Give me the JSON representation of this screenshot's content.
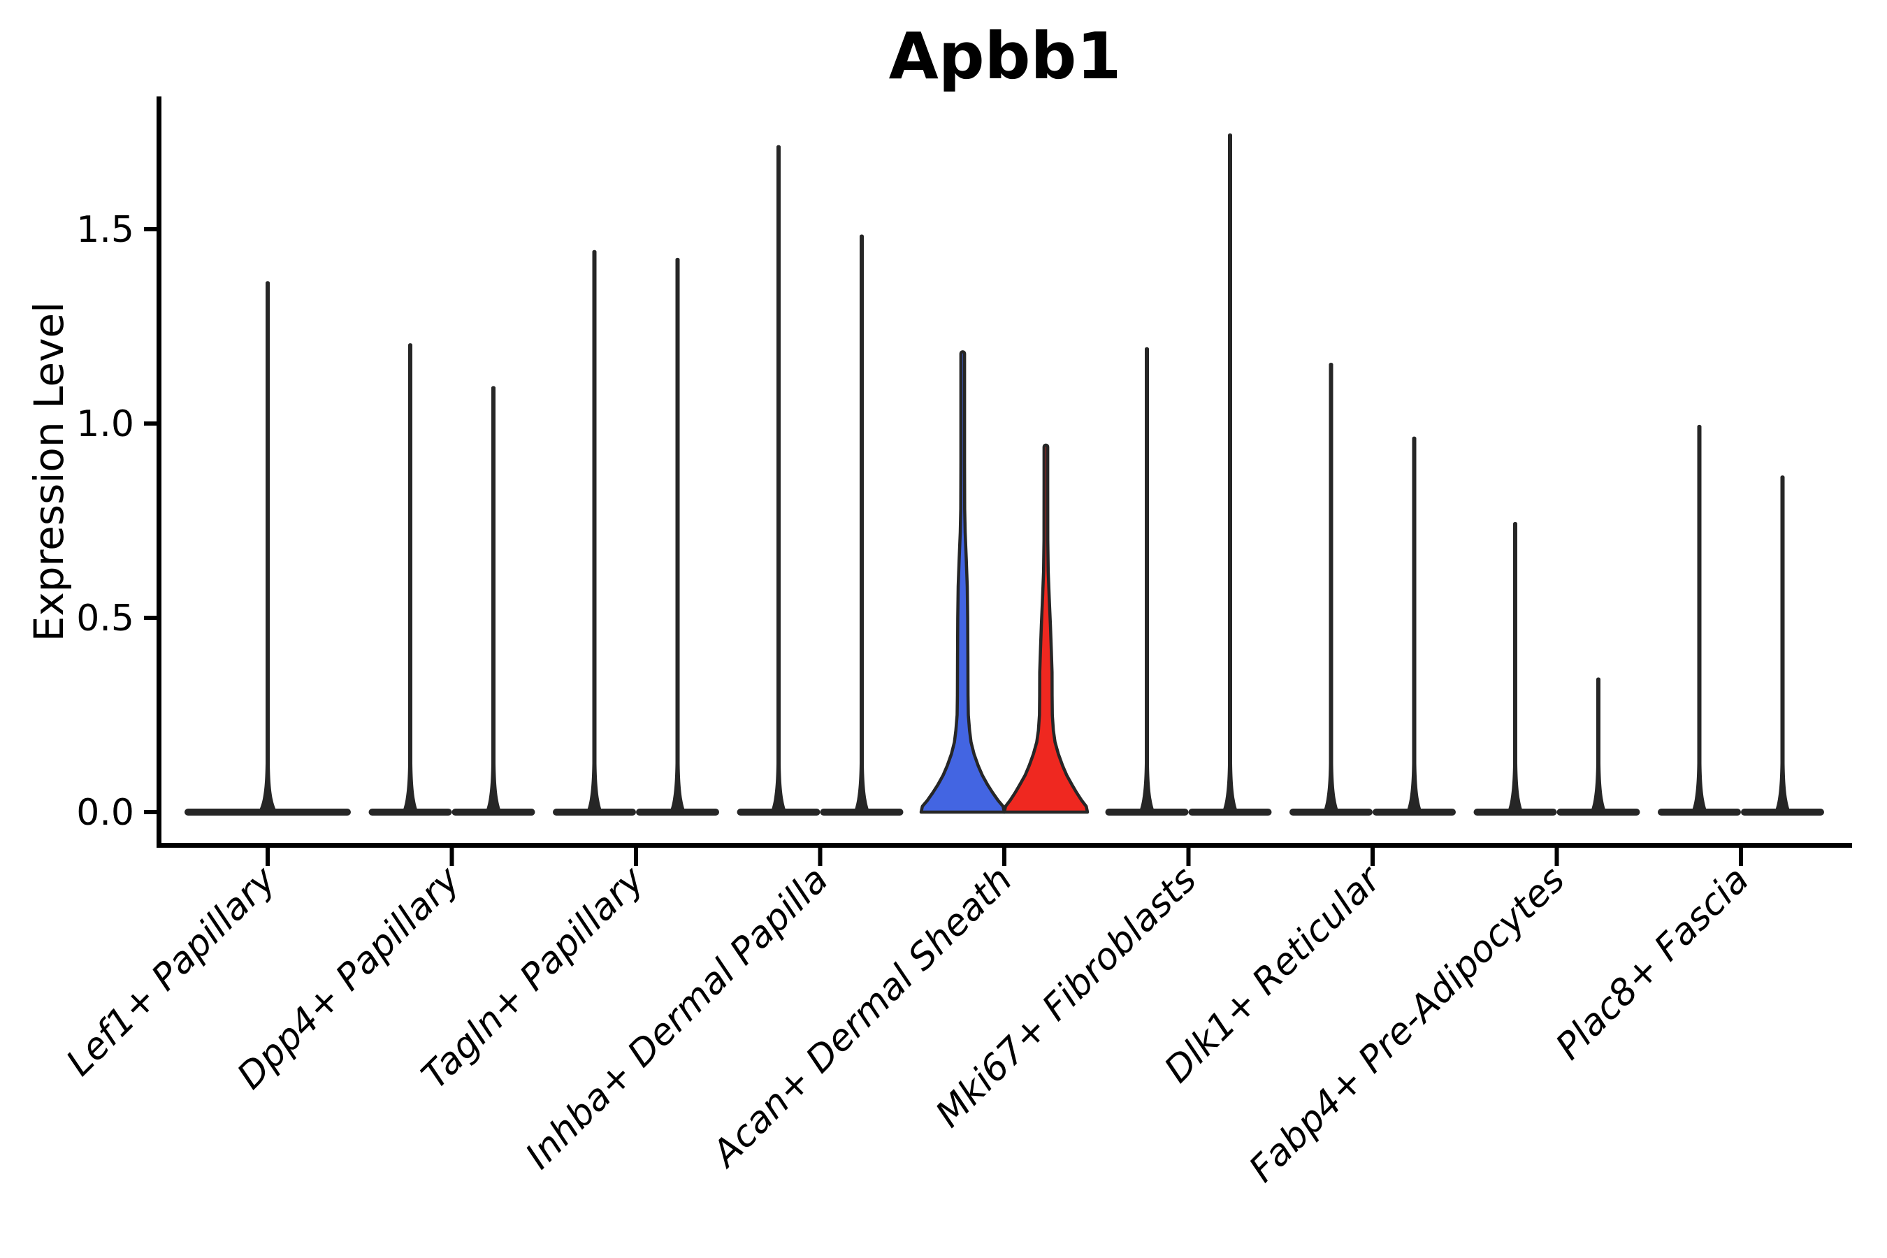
{
  "title": {
    "text": "Apbb1"
  },
  "y_axis": {
    "label": "Expression Level",
    "tick_labels": [
      "0.0",
      "0.5",
      "1.0",
      "1.5"
    ]
  },
  "chart_data": {
    "type": "violin",
    "title": "Apbb1",
    "xlabel": "",
    "ylabel": "Expression Level",
    "ylim": [
      -0.09,
      1.84
    ],
    "yticks": [
      0.0,
      0.5,
      1.0,
      1.5
    ],
    "ytick_labels": [
      "0.0",
      "0.5",
      "1.0",
      "1.5"
    ],
    "grid": false,
    "legend_position": "none",
    "x_label_rotation_deg": 45,
    "style": {
      "violin_stroke": "#262626",
      "axis_color": "#000000",
      "highlight_blue": "#4365E2",
      "highlight_red": "#EF2820",
      "background": "#ffffff"
    },
    "categories": [
      "Lef1+ Papillary",
      "Dpp4+ Papillary",
      "Tagln+ Papillary",
      "Inhba+ Dermal Papilla",
      "Acan+ Dermal Sheath",
      "Mki67+ Fibroblasts",
      "Dlk1+ Reticular",
      "Fabp4+ Pre-Adipocytes",
      "Plac8+ Fascia"
    ],
    "violins": [
      {
        "category": "Lef1+ Papillary",
        "groups": [
          {
            "side": "center",
            "max": 1.37,
            "fill": "none"
          }
        ]
      },
      {
        "category": "Dpp4+ Papillary",
        "groups": [
          {
            "side": "left",
            "max": 1.21,
            "fill": "none"
          },
          {
            "side": "right",
            "max": 1.1,
            "fill": "none"
          }
        ]
      },
      {
        "category": "Tagln+ Papillary",
        "groups": [
          {
            "side": "left",
            "max": 1.45,
            "fill": "none"
          },
          {
            "side": "right",
            "max": 1.43,
            "fill": "none"
          }
        ]
      },
      {
        "category": "Inhba+ Dermal Papilla",
        "groups": [
          {
            "side": "left",
            "max": 1.72,
            "fill": "none"
          },
          {
            "side": "right",
            "max": 1.49,
            "fill": "none"
          }
        ]
      },
      {
        "category": "Acan+ Dermal Sheath",
        "groups": [
          {
            "side": "left",
            "max": 1.18,
            "fill": "#4365E2",
            "body": "blue_profile"
          },
          {
            "side": "right",
            "max": 0.94,
            "fill": "#EF2820",
            "body": "red_profile"
          }
        ]
      },
      {
        "category": "Mki67+ Fibroblasts",
        "groups": [
          {
            "side": "left",
            "max": 1.2,
            "fill": "none"
          },
          {
            "side": "right",
            "max": 1.75,
            "fill": "none"
          }
        ]
      },
      {
        "category": "Dlk1+ Reticular",
        "groups": [
          {
            "side": "left",
            "max": 1.16,
            "fill": "none"
          },
          {
            "side": "right",
            "max": 0.97,
            "fill": "none"
          }
        ]
      },
      {
        "category": "Fabp4+ Pre-Adipocytes",
        "groups": [
          {
            "side": "left",
            "max": 0.75,
            "fill": "none"
          },
          {
            "side": "right",
            "max": 0.35,
            "fill": "none"
          }
        ]
      },
      {
        "category": "Plac8+ Fascia",
        "groups": [
          {
            "side": "left",
            "max": 1.0,
            "fill": "none"
          },
          {
            "side": "right",
            "max": 0.87,
            "fill": "none"
          }
        ]
      }
    ],
    "profiles": {
      "blue_profile": [
        [
          0,
          1.0
        ],
        [
          0.015,
          0.97
        ],
        [
          0.03,
          0.85
        ],
        [
          0.05,
          0.72
        ],
        [
          0.07,
          0.6
        ],
        [
          0.095,
          0.47
        ],
        [
          0.12,
          0.37
        ],
        [
          0.15,
          0.27
        ],
        [
          0.18,
          0.2
        ],
        [
          0.21,
          0.165
        ],
        [
          0.25,
          0.135
        ],
        [
          0.3,
          0.128
        ],
        [
          0.4,
          0.125
        ],
        [
          0.5,
          0.12
        ],
        [
          0.58,
          0.11
        ],
        [
          0.65,
          0.085
        ],
        [
          0.72,
          0.058
        ],
        [
          0.78,
          0.047
        ],
        [
          0.9,
          0.044
        ],
        [
          1.1,
          0.044
        ],
        [
          1.18,
          0.044
        ]
      ],
      "red_profile": [
        [
          0,
          1.0
        ],
        [
          0.015,
          0.97
        ],
        [
          0.03,
          0.86
        ],
        [
          0.05,
          0.74
        ],
        [
          0.07,
          0.63
        ],
        [
          0.095,
          0.5
        ],
        [
          0.12,
          0.4
        ],
        [
          0.15,
          0.3
        ],
        [
          0.18,
          0.22
        ],
        [
          0.21,
          0.18
        ],
        [
          0.25,
          0.155
        ],
        [
          0.3,
          0.15
        ],
        [
          0.36,
          0.148
        ],
        [
          0.42,
          0.13
        ],
        [
          0.48,
          0.11
        ],
        [
          0.55,
          0.08
        ],
        [
          0.62,
          0.055
        ],
        [
          0.7,
          0.045
        ],
        [
          0.85,
          0.044
        ],
        [
          0.94,
          0.044
        ]
      ]
    }
  }
}
